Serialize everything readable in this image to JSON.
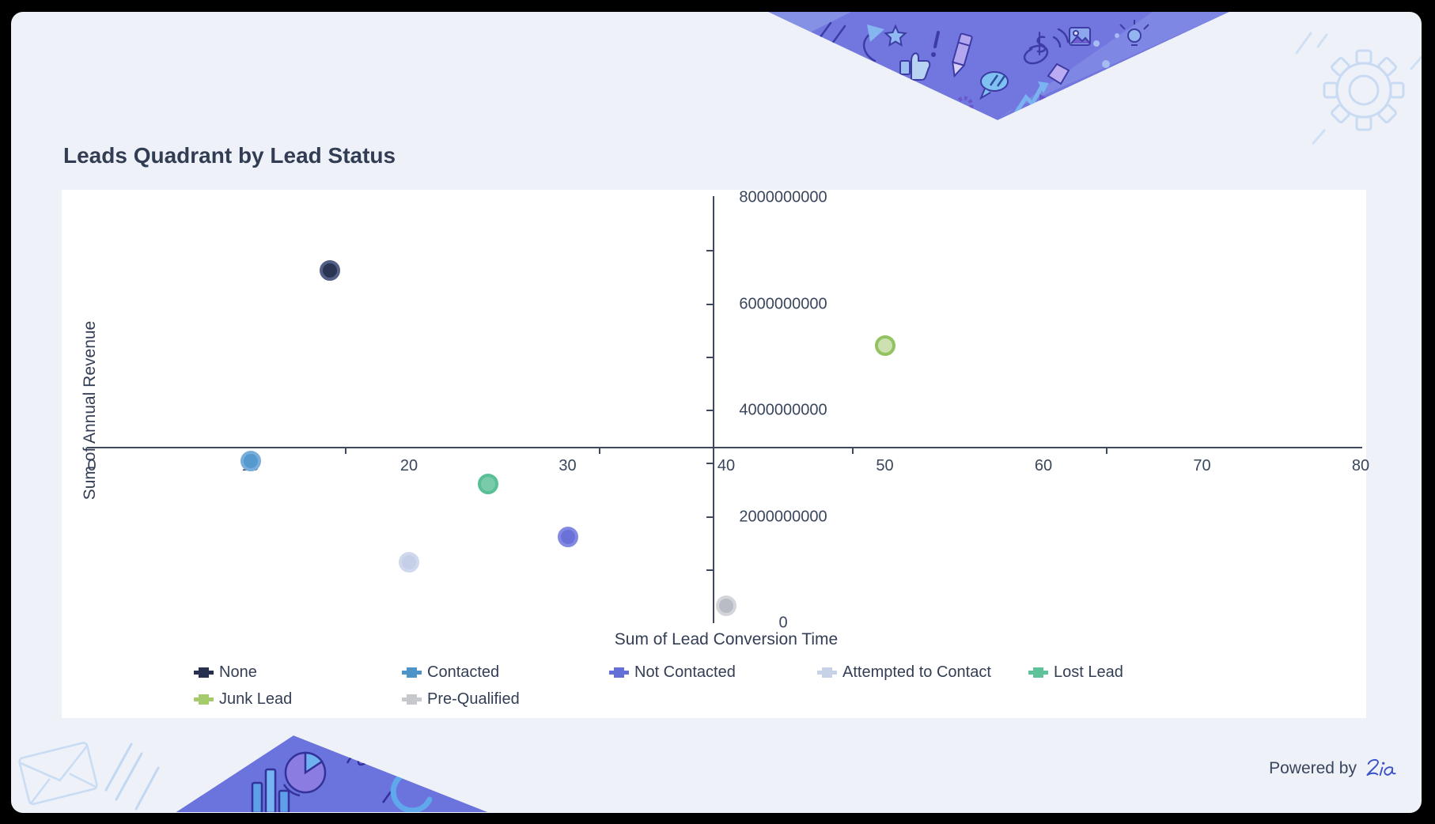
{
  "frame": {
    "outer_border": "#000000",
    "panel_bg": "#eef1f8",
    "card_bg": "#ffffff"
  },
  "title": "Leads Quadrant by Lead Status",
  "powered_by": {
    "text": "Powered by",
    "logo": "Zia",
    "logo_color": "#3a52c6"
  },
  "chart_data": {
    "type": "scatter",
    "title": "Leads Quadrant by Lead Status",
    "xlabel": "Sum of Lead Conversion Time",
    "ylabel": "Sum of Annual Revenue",
    "grid": false,
    "legend_position": "bottom",
    "x_axis": {
      "min": 0,
      "max": 80,
      "labels": [
        0,
        10,
        20,
        30,
        40,
        50,
        60,
        70,
        80
      ],
      "minor_ticks": [
        16,
        32,
        48,
        64
      ]
    },
    "y_axis": {
      "min": 0,
      "max": 8000000000,
      "labels": [
        8000000000,
        6000000000,
        4000000000,
        2000000000,
        0
      ],
      "minor_tick_step": 1000000000
    },
    "quadrant_cross": {
      "x": 39.15,
      "y": 3320000000
    },
    "series": [
      {
        "name": "None",
        "x": 15,
        "y": 6630000000,
        "color": "#27304f",
        "dot_fill": "#2a3453",
        "dot_ring": "#535f87"
      },
      {
        "name": "Contacted",
        "x": 10,
        "y": 3050000000,
        "color": "#4d94c8",
        "dot_fill": "#5599cf",
        "dot_ring": "#79aedb"
      },
      {
        "name": "Not Contacted",
        "x": 30,
        "y": 1620000000,
        "color": "#6470d8",
        "dot_fill": "#6a71d9",
        "dot_ring": "#8289e3"
      },
      {
        "name": "Attempted to Contact",
        "x": 20,
        "y": 1150000000,
        "color": "#c7d1e8",
        "dot_fill": "#c5cfe7",
        "dot_ring": "#cfd8ec"
      },
      {
        "name": "Lost Lead",
        "x": 25,
        "y": 2620000000,
        "color": "#5ec29a",
        "dot_fill": "#79cba9",
        "dot_ring": "#59c096"
      },
      {
        "name": "Junk Lead",
        "x": 50,
        "y": 5220000000,
        "color": "#a5cb6d",
        "dot_fill": "#cde0b2",
        "dot_ring": "#93c261"
      },
      {
        "name": "Pre-Qualified",
        "x": 40,
        "y": 330000000,
        "color": "#c6c8cc",
        "dot_fill": "#b8bcc4",
        "dot_ring": "#d3d5da"
      }
    ]
  }
}
